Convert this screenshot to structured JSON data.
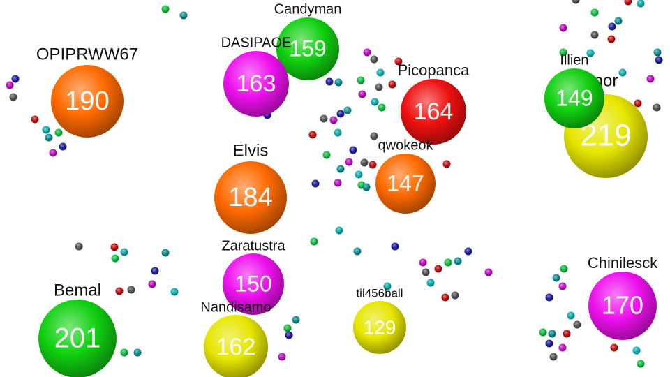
{
  "players": [
    {
      "name": "nor",
      "score": 219,
      "color": "#e6e600"
    },
    {
      "name": "OPIPRWW67",
      "score": 190,
      "color": "#ff6a00"
    },
    {
      "name": "Candyman",
      "score": 159,
      "color": "#10d010"
    },
    {
      "name": "DASIPAOE",
      "score": 163,
      "color": "#ee10ee"
    },
    {
      "name": "Picopanca",
      "score": 164,
      "color": "#ee1010"
    },
    {
      "name": "Illien",
      "score": 149,
      "color": "#10d010"
    },
    {
      "name": "Elvis",
      "score": 184,
      "color": "#ff6a00"
    },
    {
      "name": "qwokeok",
      "score": 147,
      "color": "#ff6a00"
    },
    {
      "name": "Zaratustra",
      "score": 150,
      "color": "#ee10ee"
    },
    {
      "name": "Bemal",
      "score": 201,
      "color": "#10d010"
    },
    {
      "name": "Nandisamo",
      "score": 162,
      "color": "#e6e600"
    },
    {
      "name": "til456ball",
      "score": 129,
      "color": "#e6e600"
    },
    {
      "name": "Chinilesck",
      "score": 170,
      "color": "#ee10ee"
    }
  ]
}
